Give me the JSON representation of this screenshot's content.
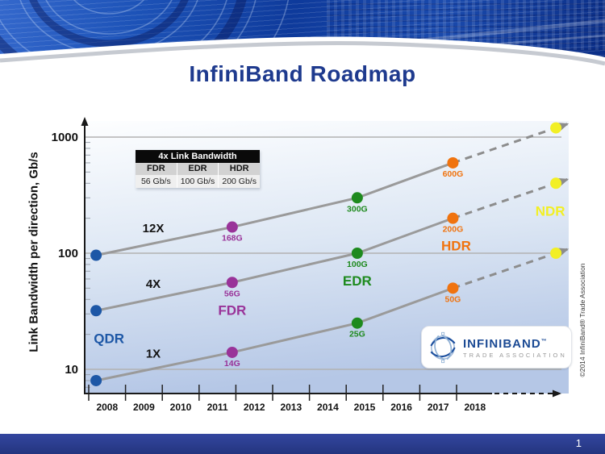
{
  "slide": {
    "title": "InfiniBand Roadmap",
    "page_number": "1",
    "copyright_vertical": "©2014 InfiniBand® Trade Association"
  },
  "inset_table": {
    "header": "4x Link Bandwidth",
    "columns": [
      "FDR",
      "EDR",
      "HDR"
    ],
    "values": [
      "56 Gb/s",
      "100 Gb/s",
      "200 Gb/s"
    ]
  },
  "logo": {
    "name": "INFINIBAND",
    "tm": "™",
    "subtitle": "TRADE ASSOCIATION"
  },
  "chart_data": {
    "type": "line",
    "title": "InfiniBand Roadmap",
    "xlabel": "",
    "ylabel": "Link Bandwidth per direction, Gb/s",
    "y_scale": "log",
    "ylim": [
      7,
      1300
    ],
    "y_ticks": [
      1000,
      100,
      10
    ],
    "x_ticks": [
      "2008",
      "2009",
      "2010",
      "2011",
      "2012",
      "2013",
      "2014",
      "2015",
      "2016",
      "2017",
      "2018"
    ],
    "grid": "horizontal-major",
    "point_years": [
      2008.2,
      2011.9,
      2015.3,
      2017.9,
      2020.7
    ],
    "projection_dashed_from_index": 3,
    "generations": [
      {
        "name": "QDR",
        "color": "#1d57a6",
        "label_dx": 16
      },
      {
        "name": "FDR",
        "color": "#993399",
        "label_dx": 0
      },
      {
        "name": "EDR",
        "color": "#1e8a1e",
        "label_dx": 0
      },
      {
        "name": "HDR",
        "color": "#f0730f",
        "label_dx": 4
      },
      {
        "name": "NDR",
        "color": "#f2ef25",
        "label_dx": -7
      }
    ],
    "series": [
      {
        "name": "12x",
        "label": "12X",
        "values": [
          96,
          168,
          300,
          600,
          1200
        ],
        "point_labels": [
          "",
          "168G",
          "300G",
          "600G",
          ""
        ]
      },
      {
        "name": "4x",
        "label": "4X",
        "values": [
          32,
          56,
          100,
          200,
          400
        ],
        "point_labels": [
          "",
          "56G",
          "100G",
          "200G",
          ""
        ]
      },
      {
        "name": "1x",
        "label": "1X",
        "values": [
          8,
          14,
          25,
          50,
          100
        ],
        "point_labels": [
          "",
          "14G",
          "25G",
          "50G",
          ""
        ]
      }
    ],
    "line_color": "#9a9a9a",
    "projection_color": "#8c8c8c"
  }
}
